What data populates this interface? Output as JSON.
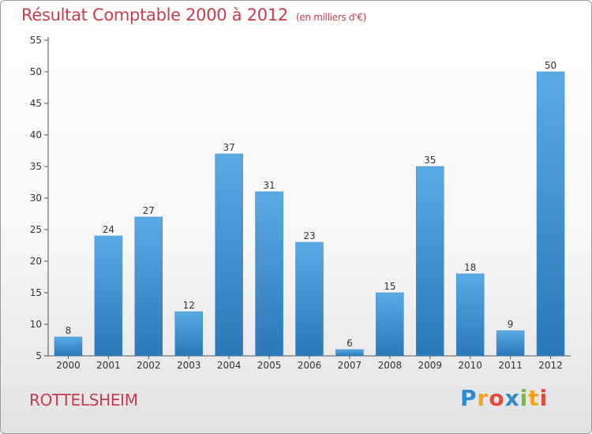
{
  "header": {
    "title": "Résultat Comptable 2000 à 2012",
    "subtitle": "(en milliers d'€)"
  },
  "footer": {
    "city": "ROTTELSHEIM",
    "brand": [
      "P",
      "r",
      "o",
      "x",
      "i",
      "t",
      "i"
    ]
  },
  "colors": {
    "bar_top": "#5aaae6",
    "bar_bottom": "#2a78b8",
    "title": "#c73d4f"
  },
  "chart_data": {
    "type": "bar",
    "categories": [
      "2000",
      "2001",
      "2002",
      "2003",
      "2004",
      "2005",
      "2006",
      "2007",
      "2008",
      "2009",
      "2010",
      "2011",
      "2012"
    ],
    "values": [
      8,
      24,
      27,
      12,
      37,
      31,
      23,
      6,
      15,
      35,
      18,
      9,
      50
    ],
    "ylim": [
      5,
      55
    ],
    "yticks": [
      5,
      10,
      15,
      20,
      25,
      30,
      35,
      40,
      45,
      50,
      55
    ],
    "grid": false,
    "data_labels": true
  }
}
